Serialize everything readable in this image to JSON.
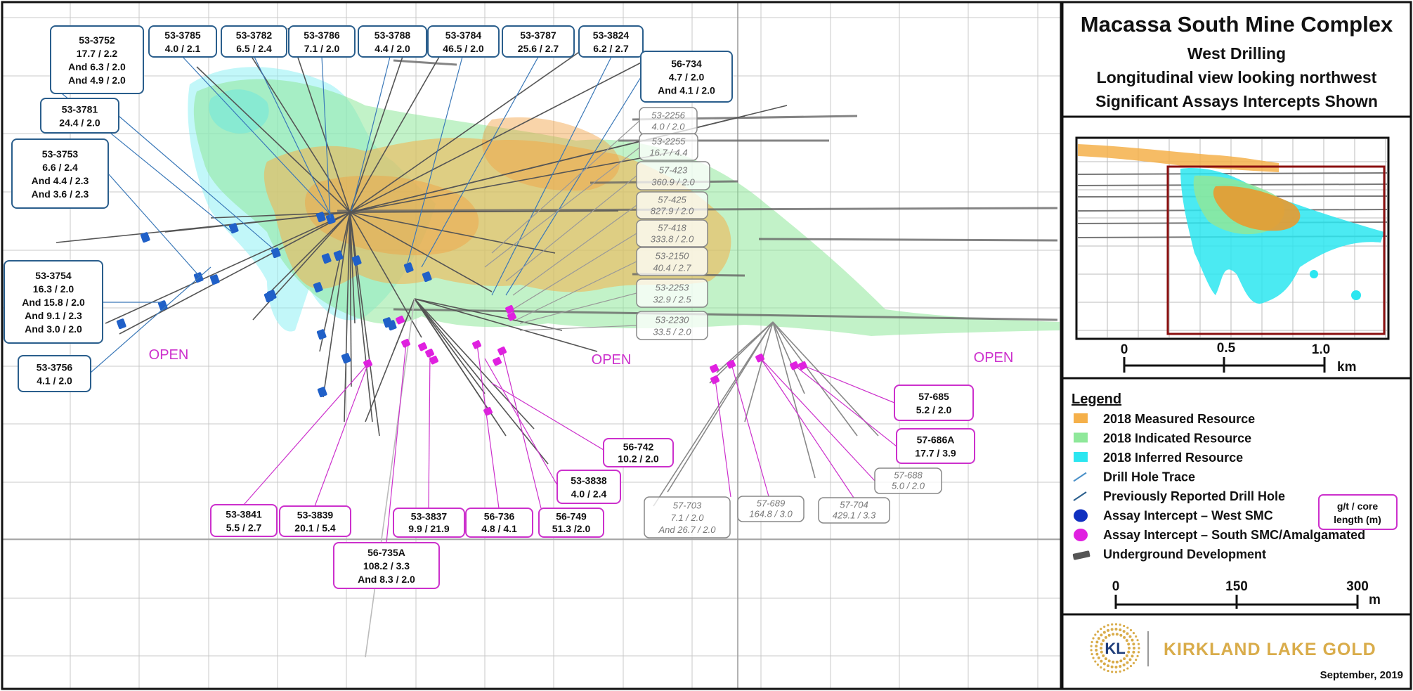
{
  "title_block": {
    "title": "Macassa South Mine Complex",
    "lines": [
      "West Drilling",
      "Longitudinal view looking northwest",
      "Significant Assays Intercepts Shown"
    ]
  },
  "inset": {
    "scale_labels": [
      "0",
      "0.5",
      "1.0"
    ],
    "scale_unit": "km"
  },
  "legend": {
    "heading": "Legend",
    "items": [
      {
        "label": "2018 Measured Resource",
        "color": "#f5b04a",
        "symbol": "swatch"
      },
      {
        "label": "2018 Indicated Resource",
        "color": "#8fe89a",
        "symbol": "swatch"
      },
      {
        "label": "2018 Inferred Resource",
        "color": "#2be6f0",
        "symbol": "swatch"
      },
      {
        "label": "Drill Hole Trace",
        "color": "#4a90c8",
        "symbol": "line"
      },
      {
        "label": "Previously Reported Drill Hole",
        "color": "#2a5e8c",
        "symbol": "line"
      },
      {
        "label": "Assay Intercept – West SMC",
        "color": "#1030c0",
        "symbol": "dot"
      },
      {
        "label": "Assay Intercept – South SMC/Amalgamated",
        "color": "#e020e0",
        "symbol": "dot"
      },
      {
        "label": "Underground Development",
        "color": "#555555",
        "symbol": "bar"
      }
    ],
    "units_box": [
      "g/t / core",
      "length (m)"
    ],
    "scale_labels": [
      "0",
      "150",
      "300"
    ],
    "scale_unit": "m"
  },
  "logo": {
    "initials": "KL",
    "company": "KIRKLAND LAKE GOLD",
    "date": "September, 2019"
  },
  "open_labels": [
    "OPEN",
    "OPEN",
    "OPEN"
  ],
  "colors": {
    "west_box": "#2a5e8c",
    "south_box": "#cc30cc",
    "prev_box": "#888888",
    "open": "#cc30cc",
    "grid": "#c8c8c8"
  },
  "callouts": [
    {
      "group": "west",
      "lines": [
        "53-3752",
        "17.7 / 2.2",
        "And 6.3 / 2.0",
        "And 4.9 / 2.0"
      ]
    },
    {
      "group": "west",
      "lines": [
        "53-3785",
        "4.0 / 2.1"
      ]
    },
    {
      "group": "west",
      "lines": [
        "53-3782",
        "6.5 / 2.4"
      ]
    },
    {
      "group": "west",
      "lines": [
        "53-3786",
        "7.1 / 2.0"
      ]
    },
    {
      "group": "west",
      "lines": [
        "53-3788",
        "4.4 / 2.0"
      ]
    },
    {
      "group": "west",
      "lines": [
        "53-3784",
        "46.5 / 2.0"
      ]
    },
    {
      "group": "west",
      "lines": [
        "53-3787",
        "25.6 / 2.7"
      ]
    },
    {
      "group": "west",
      "lines": [
        "53-3824",
        "6.2 / 2.7"
      ]
    },
    {
      "group": "west",
      "lines": [
        "56-734",
        "4.7 / 2.0",
        "And 4.1 / 2.0"
      ]
    },
    {
      "group": "west",
      "lines": [
        "53-3781",
        "24.4 / 2.0"
      ]
    },
    {
      "group": "west",
      "lines": [
        "53-3753",
        "6.6 / 2.4",
        "And 4.4 / 2.3",
        "And 3.6 / 2.3"
      ]
    },
    {
      "group": "west",
      "lines": [
        "53-3754",
        "16.3 / 2.0",
        "And 15.8 / 2.0",
        "And 9.1 / 2.3",
        "And 3.0 / 2.0"
      ]
    },
    {
      "group": "west",
      "lines": [
        "53-3756",
        "4.1 / 2.0"
      ]
    },
    {
      "group": "prev",
      "lines": [
        "53-2256",
        "4.0 / 2.0"
      ]
    },
    {
      "group": "prev",
      "lines": [
        "53-2255",
        "16.7 / 4.4"
      ]
    },
    {
      "group": "prev",
      "lines": [
        "57-423",
        "360.9 / 2.0"
      ]
    },
    {
      "group": "prev",
      "lines": [
        "57-425",
        "827.9 / 2.0"
      ]
    },
    {
      "group": "prev",
      "lines": [
        "57-418",
        "333.8 / 2.0"
      ]
    },
    {
      "group": "prev",
      "lines": [
        "53-2150",
        "40.4 / 2.7"
      ]
    },
    {
      "group": "prev",
      "lines": [
        "53-2253",
        "32.9 / 2.5"
      ]
    },
    {
      "group": "prev",
      "lines": [
        "53-2230",
        "33.5 / 2.0"
      ]
    },
    {
      "group": "south",
      "lines": [
        "57-685",
        "5.2 / 2.0"
      ]
    },
    {
      "group": "south",
      "lines": [
        "57-686A",
        "17.7 / 3.9"
      ]
    },
    {
      "group": "prev",
      "lines": [
        "57-688",
        "5.0 / 2.0"
      ]
    },
    {
      "group": "south",
      "lines": [
        "56-742",
        "10.2 / 2.0"
      ]
    },
    {
      "group": "south",
      "lines": [
        "53-3838",
        "4.0 / 2.4"
      ]
    },
    {
      "group": "prev",
      "lines": [
        "57-703",
        "7.1 / 2.0",
        "And 26.7 / 2.0"
      ]
    },
    {
      "group": "prev",
      "lines": [
        "57-689",
        "164.8 / 3.0"
      ]
    },
    {
      "group": "prev",
      "lines": [
        "57-704",
        "429.1 / 3.3"
      ]
    },
    {
      "group": "south",
      "lines": [
        "53-3841",
        "5.5 / 2.7"
      ]
    },
    {
      "group": "south",
      "lines": [
        "53-3839",
        "20.1 / 5.4"
      ]
    },
    {
      "group": "south",
      "lines": [
        "53-3837",
        "9.9 / 21.9"
      ]
    },
    {
      "group": "south",
      "lines": [
        "56-736",
        "4.8 / 4.1"
      ]
    },
    {
      "group": "south",
      "lines": [
        "56-749",
        "51.3 /2.0"
      ]
    },
    {
      "group": "south",
      "lines": [
        "56-735A",
        "108.2 / 3.3",
        "And  8.3 / 2.0"
      ]
    }
  ]
}
